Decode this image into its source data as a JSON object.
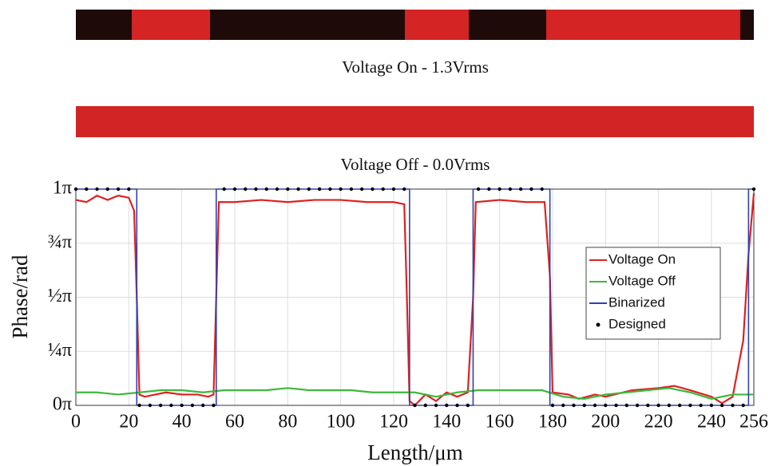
{
  "chart_data": {
    "type": "line",
    "annotations": [
      "Voltage On - 1.3Vrms",
      "Voltage Off - 0.0Vrms"
    ],
    "xlabel": "Length/μm",
    "ylabel": "Phase/rad",
    "xlim": [
      0,
      256
    ],
    "ylim": [
      0,
      1
    ],
    "xticks": [
      0,
      20,
      40,
      60,
      80,
      100,
      120,
      140,
      160,
      180,
      200,
      220,
      240,
      256
    ],
    "yticks": [
      {
        "value": 0,
        "label": "0π"
      },
      {
        "value": 0.25,
        "label": "¼π"
      },
      {
        "value": 0.5,
        "label": "½π"
      },
      {
        "value": 0.75,
        "label": "¾π"
      },
      {
        "value": 1,
        "label": "1π"
      }
    ],
    "grid": true,
    "legend": "center right",
    "series": [
      {
        "name": "Voltage On",
        "color": "#e02020",
        "x": [
          0,
          4,
          8,
          12,
          16,
          20,
          22,
          23,
          24,
          26,
          30,
          34,
          40,
          46,
          50,
          52,
          53,
          54,
          60,
          70,
          80,
          90,
          100,
          110,
          120,
          124,
          125,
          126,
          128,
          132,
          136,
          140,
          144,
          148,
          150,
          151,
          160,
          170,
          177,
          179,
          180,
          186,
          190,
          196,
          200,
          210,
          220,
          226,
          232,
          240,
          244,
          248,
          252,
          254,
          256
        ],
        "values": [
          0.95,
          0.94,
          0.97,
          0.95,
          0.97,
          0.96,
          0.9,
          0.5,
          0.05,
          0.04,
          0.05,
          0.06,
          0.05,
          0.05,
          0.04,
          0.05,
          0.5,
          0.94,
          0.94,
          0.95,
          0.94,
          0.95,
          0.95,
          0.94,
          0.94,
          0.93,
          0.5,
          0.02,
          0.0,
          0.05,
          0.02,
          0.06,
          0.04,
          0.06,
          0.5,
          0.94,
          0.95,
          0.94,
          0.94,
          0.6,
          0.06,
          0.05,
          0.03,
          0.05,
          0.04,
          0.07,
          0.08,
          0.09,
          0.07,
          0.04,
          0.01,
          0.04,
          0.3,
          0.7,
          0.98
        ]
      },
      {
        "name": "Voltage Off",
        "color": "#3cb83c",
        "x": [
          0,
          8,
          16,
          24,
          32,
          40,
          48,
          56,
          64,
          72,
          80,
          88,
          96,
          104,
          112,
          120,
          128,
          136,
          144,
          152,
          160,
          168,
          176,
          184,
          192,
          200,
          208,
          216,
          224,
          232,
          240,
          248,
          256
        ],
        "values": [
          0.06,
          0.06,
          0.05,
          0.06,
          0.07,
          0.07,
          0.06,
          0.07,
          0.07,
          0.07,
          0.08,
          0.07,
          0.07,
          0.07,
          0.06,
          0.06,
          0.06,
          0.04,
          0.06,
          0.07,
          0.07,
          0.07,
          0.07,
          0.04,
          0.03,
          0.05,
          0.06,
          0.07,
          0.08,
          0.06,
          0.03,
          0.05,
          0.05
        ]
      },
      {
        "name": "Binarized",
        "color": "#3040b0",
        "x": [
          0,
          23,
          23,
          53,
          53,
          126,
          126,
          150,
          150,
          179,
          179,
          254,
          254,
          256
        ],
        "values": [
          1,
          1,
          0,
          0,
          1,
          1,
          0,
          0,
          1,
          1,
          0,
          0,
          1,
          1
        ]
      },
      {
        "name": "Designed",
        "color": "#000000",
        "marker": "dot",
        "x": [
          0,
          4,
          8,
          12,
          16,
          20,
          24,
          28,
          32,
          36,
          40,
          44,
          48,
          52,
          56,
          60,
          64,
          68,
          72,
          76,
          80,
          84,
          88,
          92,
          96,
          100,
          104,
          108,
          112,
          116,
          120,
          124,
          128,
          132,
          136,
          140,
          144,
          148,
          152,
          156,
          160,
          164,
          168,
          172,
          176,
          180,
          184,
          188,
          192,
          196,
          200,
          204,
          208,
          212,
          216,
          220,
          224,
          228,
          232,
          236,
          240,
          244,
          248,
          252,
          256
        ],
        "values": [
          1,
          1,
          1,
          1,
          1,
          1,
          0,
          0,
          0,
          0,
          0,
          0,
          0,
          0,
          1,
          1,
          1,
          1,
          1,
          1,
          1,
          1,
          1,
          1,
          1,
          1,
          1,
          1,
          1,
          1,
          1,
          1,
          0,
          0,
          0,
          0,
          0,
          0,
          1,
          1,
          1,
          1,
          1,
          1,
          1,
          0,
          0,
          0,
          0,
          0,
          0,
          0,
          0,
          0,
          0,
          0,
          0,
          0,
          0,
          0,
          0,
          0,
          0,
          0,
          1
        ]
      }
    ]
  }
}
